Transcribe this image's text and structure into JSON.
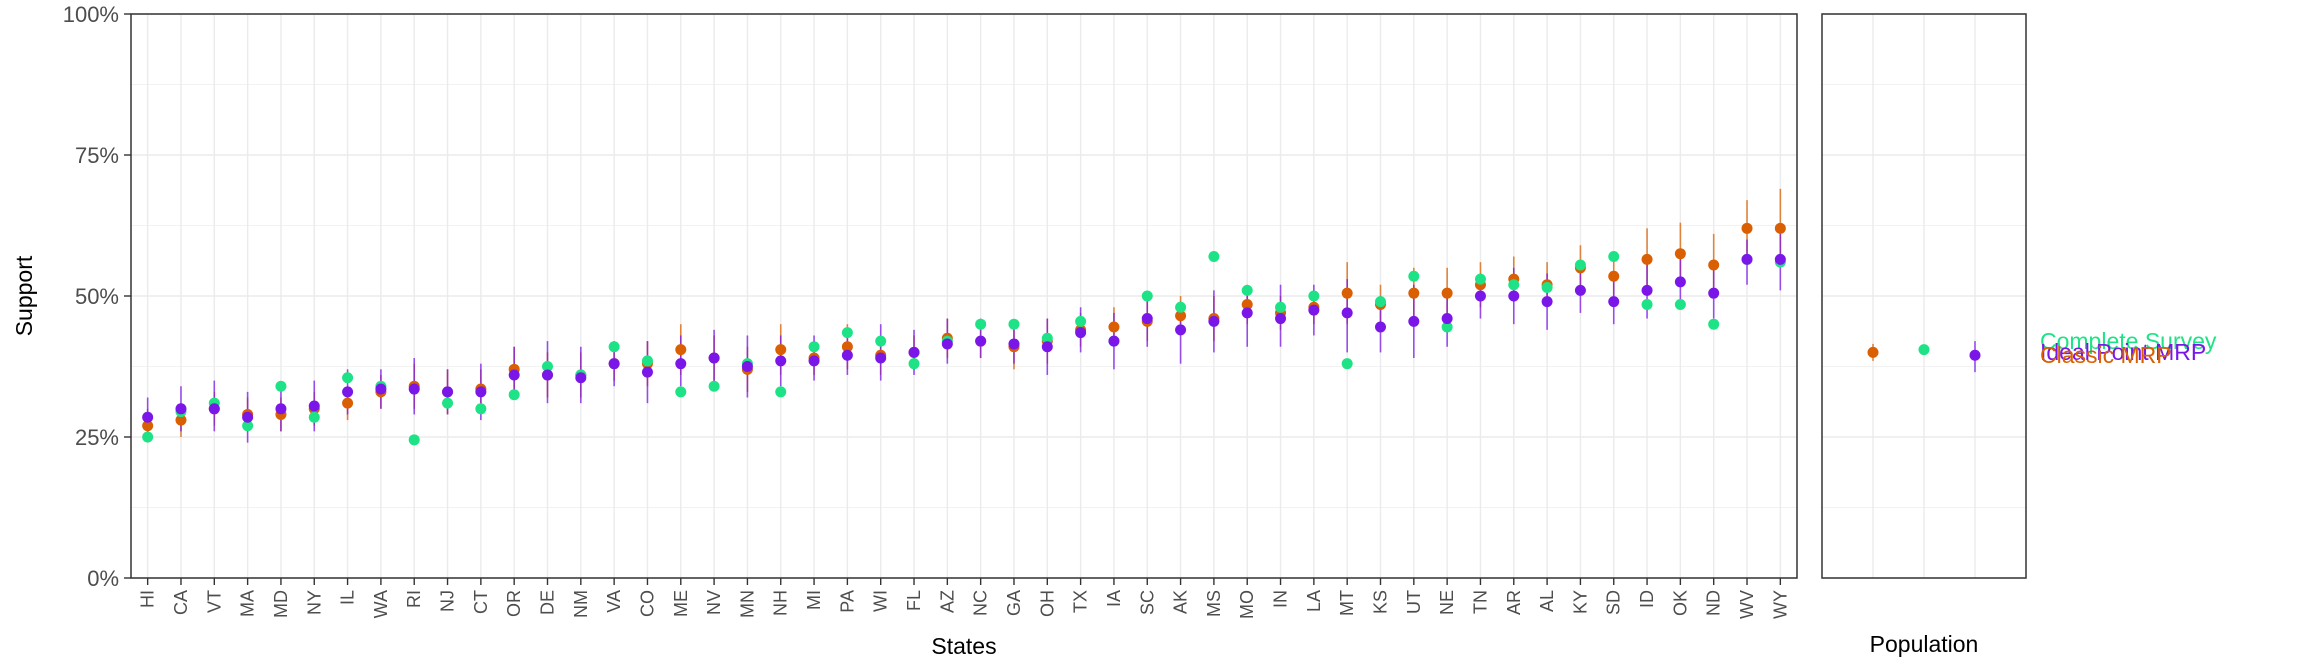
{
  "chart_data": [
    {
      "type": "scatter",
      "title": "",
      "xlabel": "States",
      "ylabel": "Support",
      "ylim": [
        0,
        1
      ],
      "y_ticks": [
        "0%",
        "25%",
        "50%",
        "75%",
        "100%"
      ],
      "y_tick_values": [
        0,
        0.25,
        0.5,
        0.75,
        1.0
      ],
      "grid": true,
      "legend": "none",
      "categories": [
        "HI",
        "CA",
        "VT",
        "MA",
        "MD",
        "NY",
        "IL",
        "WA",
        "RI",
        "NJ",
        "CT",
        "OR",
        "DE",
        "NM",
        "VA",
        "CO",
        "ME",
        "NV",
        "MN",
        "NH",
        "MI",
        "PA",
        "WI",
        "FL",
        "AZ",
        "NC",
        "GA",
        "OH",
        "TX",
        "IA",
        "SC",
        "AK",
        "MS",
        "MO",
        "IN",
        "LA",
        "MT",
        "KS",
        "UT",
        "NE",
        "TN",
        "AR",
        "AL",
        "KY",
        "SD",
        "ID",
        "OK",
        "ND",
        "WV",
        "WY"
      ],
      "series": [
        {
          "color": "#d95f02",
          "values": [
            0.27,
            0.28,
            0.3,
            0.29,
            0.29,
            0.3,
            0.31,
            0.33,
            0.34,
            0.33,
            0.335,
            0.37,
            0.36,
            0.36,
            0.38,
            0.38,
            0.405,
            0.39,
            0.37,
            0.405,
            0.39,
            0.41,
            0.395,
            0.4,
            0.425,
            0.42,
            0.41,
            0.42,
            0.44,
            0.445,
            0.455,
            0.465,
            0.46,
            0.485,
            0.47,
            0.48,
            0.505,
            0.485,
            0.505,
            0.505,
            0.52,
            0.53,
            0.52,
            0.55,
            0.535,
            0.565,
            0.575,
            0.555,
            0.62,
            0.62
          ],
          "error_low": [
            0.24,
            0.25,
            0.27,
            0.26,
            0.26,
            0.27,
            0.28,
            0.3,
            0.3,
            0.29,
            0.3,
            0.33,
            0.32,
            0.32,
            0.35,
            0.34,
            0.36,
            0.35,
            0.33,
            0.36,
            0.36,
            0.37,
            0.36,
            0.37,
            0.39,
            0.39,
            0.37,
            0.38,
            0.41,
            0.41,
            0.42,
            0.43,
            0.42,
            0.45,
            0.44,
            0.45,
            0.45,
            0.45,
            0.46,
            0.46,
            0.48,
            0.49,
            0.48,
            0.51,
            0.5,
            0.51,
            0.52,
            0.5,
            0.57,
            0.56
          ],
          "error_high": [
            0.3,
            0.31,
            0.33,
            0.32,
            0.32,
            0.33,
            0.34,
            0.36,
            0.38,
            0.37,
            0.37,
            0.41,
            0.4,
            0.4,
            0.41,
            0.42,
            0.45,
            0.43,
            0.41,
            0.45,
            0.42,
            0.45,
            0.43,
            0.43,
            0.46,
            0.45,
            0.45,
            0.46,
            0.47,
            0.48,
            0.49,
            0.5,
            0.5,
            0.52,
            0.5,
            0.51,
            0.56,
            0.52,
            0.55,
            0.55,
            0.56,
            0.57,
            0.56,
            0.59,
            0.57,
            0.62,
            0.63,
            0.61,
            0.67,
            0.69
          ]
        },
        {
          "color": "#1ee386",
          "values": [
            0.25,
            0.295,
            0.31,
            0.27,
            0.34,
            0.285,
            0.355,
            0.34,
            0.245,
            0.31,
            0.3,
            0.325,
            0.375,
            0.36,
            0.41,
            0.385,
            0.33,
            0.34,
            0.38,
            0.33,
            0.41,
            0.435,
            0.42,
            0.38,
            0.42,
            0.45,
            0.45,
            0.425,
            0.455,
            0.42,
            0.5,
            0.48,
            0.57,
            0.51,
            0.48,
            0.5,
            0.38,
            0.49,
            0.535,
            0.445,
            0.53,
            0.52,
            0.515,
            0.555,
            0.57,
            0.485,
            0.485,
            0.45,
            0.565,
            0.56
          ]
        },
        {
          "color": "#7a17e8",
          "values": [
            0.285,
            0.3,
            0.3,
            0.285,
            0.3,
            0.305,
            0.33,
            0.335,
            0.335,
            0.33,
            0.33,
            0.36,
            0.36,
            0.355,
            0.38,
            0.365,
            0.38,
            0.39,
            0.375,
            0.385,
            0.385,
            0.395,
            0.39,
            0.4,
            0.415,
            0.42,
            0.415,
            0.41,
            0.435,
            0.42,
            0.46,
            0.44,
            0.455,
            0.47,
            0.46,
            0.475,
            0.47,
            0.445,
            0.455,
            0.46,
            0.5,
            0.5,
            0.49,
            0.51,
            0.49,
            0.51,
            0.525,
            0.505,
            0.565,
            0.565
          ],
          "error_low": [
            0.25,
            0.26,
            0.26,
            0.24,
            0.26,
            0.26,
            0.29,
            0.3,
            0.29,
            0.29,
            0.28,
            0.32,
            0.31,
            0.31,
            0.34,
            0.31,
            0.34,
            0.34,
            0.32,
            0.34,
            0.35,
            0.36,
            0.35,
            0.36,
            0.38,
            0.39,
            0.38,
            0.36,
            0.4,
            0.37,
            0.41,
            0.38,
            0.4,
            0.41,
            0.41,
            0.43,
            0.4,
            0.4,
            0.39,
            0.41,
            0.46,
            0.45,
            0.44,
            0.47,
            0.45,
            0.46,
            0.48,
            0.46,
            0.52,
            0.51
          ],
          "error_high": [
            0.32,
            0.34,
            0.35,
            0.33,
            0.34,
            0.35,
            0.37,
            0.37,
            0.39,
            0.37,
            0.38,
            0.41,
            0.42,
            0.41,
            0.42,
            0.42,
            0.43,
            0.44,
            0.43,
            0.43,
            0.43,
            0.44,
            0.45,
            0.44,
            0.46,
            0.46,
            0.45,
            0.46,
            0.48,
            0.47,
            0.5,
            0.49,
            0.51,
            0.51,
            0.52,
            0.52,
            0.53,
            0.5,
            0.52,
            0.51,
            0.54,
            0.55,
            0.54,
            0.56,
            0.54,
            0.56,
            0.57,
            0.55,
            0.6,
            0.61
          ]
        }
      ]
    },
    {
      "type": "scatter",
      "xlabel": "Population",
      "ylim": [
        0,
        1
      ],
      "legend": "right",
      "points": [
        {
          "color": "#d95f02",
          "x": 1,
          "value": 0.4,
          "error_low": 0.385,
          "error_high": 0.415
        },
        {
          "color": "#1ee386",
          "x": 2,
          "value": 0.405
        },
        {
          "color": "#7a17e8",
          "x": 3,
          "value": 0.395,
          "error_low": 0.365,
          "error_high": 0.42
        }
      ],
      "labels": [
        {
          "text": "Complete Survey",
          "color": "#1ee386"
        },
        {
          "text": "Ideal Point MRP",
          "color": "#7a17e8"
        },
        {
          "text": "Classic MRP",
          "color": "#d95f02"
        }
      ]
    }
  ]
}
